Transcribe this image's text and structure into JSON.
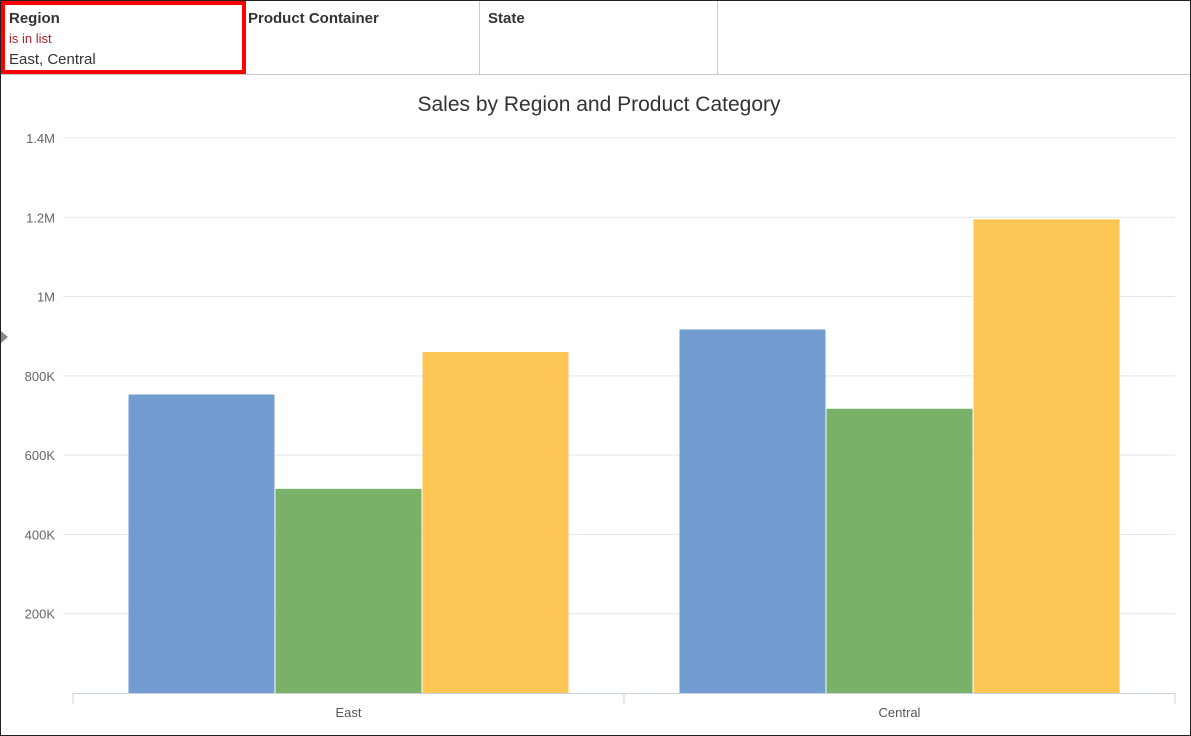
{
  "filters": [
    {
      "name": "Region",
      "operator": "is in list",
      "value": "East, Central",
      "selected": true
    },
    {
      "name": "Product Container",
      "operator": "",
      "value": "",
      "selected": false
    },
    {
      "name": "State",
      "operator": "",
      "value": "",
      "selected": false
    }
  ],
  "colors": {
    "series": [
      "#739cd0",
      "#7ab168",
      "#fec654"
    ],
    "grid": "#e2e6ea",
    "axis": "#c9d3de",
    "highlight": "#ff0000"
  },
  "chart_data": {
    "type": "bar",
    "title": "Sales by Region and Product Category",
    "categories": [
      "East",
      "Central"
    ],
    "series": [
      {
        "values": [
          753000,
          917000
        ]
      },
      {
        "values": [
          515000,
          717000
        ]
      },
      {
        "values": [
          860000,
          1195000
        ]
      }
    ],
    "ylim": [
      0,
      1400000
    ],
    "yticks": [
      200000,
      400000,
      600000,
      800000,
      1000000,
      1200000,
      1400000
    ],
    "ytick_labels": [
      "200K",
      "400K",
      "600K",
      "800K",
      "1M",
      "1.2M",
      "1.4M"
    ],
    "grid": true,
    "legend": "none"
  }
}
